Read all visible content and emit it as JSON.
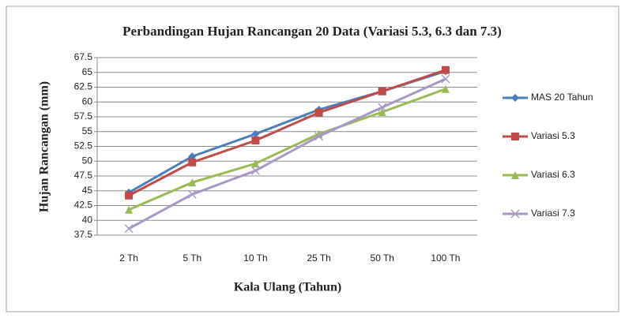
{
  "chart_data": {
    "type": "line",
    "title": "Perbandingan Hujan Rancangan 20 Data (Variasi 5.3, 6.3 dan 7.3)",
    "xlabel": "Kala Ulang (Tahun)",
    "ylabel": "Hujan Rancangan (mm)",
    "categories": [
      "2 Th",
      "5 Th",
      "10 Th",
      "25 Th",
      "50 Th",
      "100 Th"
    ],
    "series": [
      {
        "name": "MAS 20 Tahun",
        "color": "#4a7ebb",
        "marker": "diamond",
        "values": [
          44.7,
          50.8,
          54.6,
          58.7,
          61.8,
          65.2
        ]
      },
      {
        "name": "Variasi 5.3",
        "color": "#be4b48",
        "marker": "square",
        "values": [
          44.2,
          49.8,
          53.5,
          58.2,
          61.8,
          65.4
        ]
      },
      {
        "name": "Variasi 6.3",
        "color": "#98b954",
        "marker": "triangle",
        "values": [
          41.8,
          46.4,
          49.6,
          54.6,
          58.3,
          62.2
        ]
      },
      {
        "name": "Variasi 7.3",
        "color": "#a898c8",
        "marker": "x",
        "values": [
          38.6,
          44.4,
          48.4,
          54.2,
          59.1,
          63.9
        ]
      }
    ],
    "ylim": [
      37.5,
      67.5
    ],
    "yticks": [
      37.5,
      40,
      42.5,
      45,
      47.5,
      50,
      52.5,
      55,
      57.5,
      60,
      62.5,
      65,
      67.5
    ],
    "grid": true,
    "legend": "right"
  }
}
